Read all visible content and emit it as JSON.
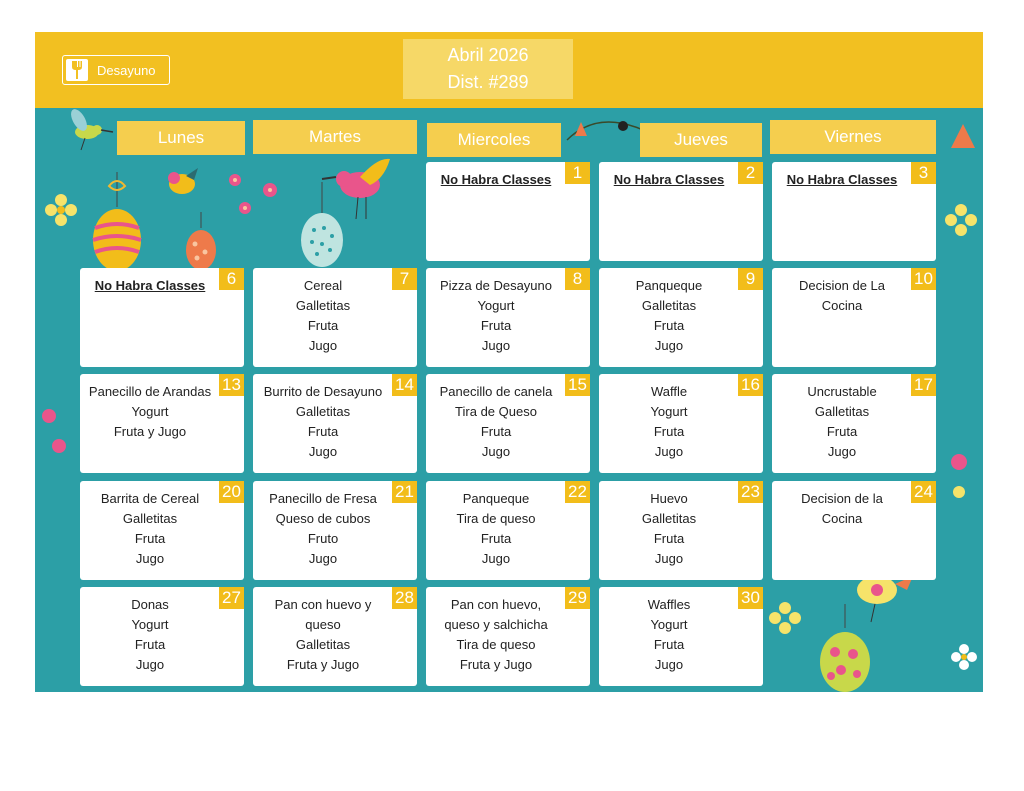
{
  "header": {
    "badge_label": "Desayuno",
    "month_year": "Abril 2026",
    "district": "Dist. #289"
  },
  "days": [
    "Lunes",
    "Martes",
    "Miercoles",
    "Jueves",
    "Viernes"
  ],
  "weeks": [
    [
      null,
      null,
      {
        "num": "1",
        "items": [
          "No Habra Classes"
        ],
        "closed": true
      },
      {
        "num": "2",
        "items": [
          "No Habra Classes"
        ],
        "closed": true
      },
      {
        "num": "3",
        "items": [
          "No Habra Classes"
        ],
        "closed": true
      }
    ],
    [
      {
        "num": "6",
        "items": [
          "No Habra Classes"
        ],
        "closed": true
      },
      {
        "num": "7",
        "items": [
          "Cereal",
          "Galletitas",
          "Fruta",
          "Jugo"
        ]
      },
      {
        "num": "8",
        "items": [
          "Pizza de Desayuno",
          "Yogurt",
          "Fruta",
          "Jugo"
        ]
      },
      {
        "num": "9",
        "items": [
          "Panqueque",
          "Galletitas",
          "Fruta",
          "Jugo"
        ]
      },
      {
        "num": "10",
        "items": [
          "Decision de La",
          "Cocina"
        ]
      }
    ],
    [
      {
        "num": "13",
        "items": [
          "Panecillo de Arandas",
          "Yogurt",
          "Fruta y Jugo"
        ]
      },
      {
        "num": "14",
        "items": [
          "Burrito de Desayuno",
          "Galletitas",
          "Fruta",
          "Jugo"
        ]
      },
      {
        "num": "15",
        "items": [
          "Panecillo de canela",
          "Tira de Queso",
          "Fruta",
          "Jugo"
        ]
      },
      {
        "num": "16",
        "items": [
          "Waffle",
          "Yogurt",
          "Fruta",
          "Jugo"
        ]
      },
      {
        "num": "17",
        "items": [
          "Uncrustable",
          "Galletitas",
          "Fruta",
          "Jugo"
        ]
      }
    ],
    [
      {
        "num": "20",
        "items": [
          "Barrita de Cereal",
          "Galletitas",
          "Fruta",
          "Jugo"
        ]
      },
      {
        "num": "21",
        "items": [
          "Panecillo de Fresa",
          "Queso de cubos",
          "Fruto",
          "Jugo"
        ]
      },
      {
        "num": "22",
        "items": [
          "Panqueque",
          "Tira de queso",
          "Fruta",
          "Jugo"
        ]
      },
      {
        "num": "23",
        "items": [
          "Huevo",
          "Galletitas",
          "Fruta",
          "Jugo"
        ]
      },
      {
        "num": "24",
        "items": [
          "Decision de la",
          "Cocina"
        ]
      }
    ],
    [
      {
        "num": "27",
        "items": [
          "Donas",
          "Yogurt",
          "Fruta",
          "Jugo"
        ]
      },
      {
        "num": "28",
        "items": [
          "Pan con huevo y",
          "queso",
          "Galletitas",
          "Fruta y Jugo"
        ]
      },
      {
        "num": "29",
        "items": [
          "Pan con huevo,",
          "queso y salchicha",
          "Tira de queso",
          "Fruta y Jugo"
        ]
      },
      {
        "num": "30",
        "items": [
          "Waffles",
          "Yogurt",
          "Fruta",
          "Jugo"
        ]
      },
      null
    ]
  ],
  "colors": {
    "background": "#2c9fa6",
    "header": "#f2c021",
    "day_header": "#f5ce4e",
    "number_tag": "#f2bd1a"
  },
  "icons": [
    "fork-icon",
    "hummingbird-icon",
    "bird-icon",
    "easter-egg-icon",
    "flower-icon"
  ]
}
